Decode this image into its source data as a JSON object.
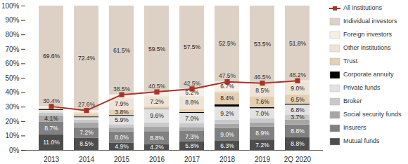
{
  "chart_data": {
    "type": "bar",
    "stacked": true,
    "data_labels": true,
    "grid": false,
    "legend": "right",
    "categories": [
      "2013",
      "2014",
      "2015",
      "2016",
      "2017",
      "2018",
      "2019",
      "2Q 2020"
    ],
    "ylim": [
      0,
      100
    ],
    "yticks": [
      {
        "value": 0,
        "label": "0%"
      },
      {
        "value": 10,
        "label": "10%"
      },
      {
        "value": 20,
        "label": "20%"
      },
      {
        "value": 30,
        "label": "30%"
      },
      {
        "value": 40,
        "label": "40%"
      },
      {
        "value": 50,
        "label": "50%"
      },
      {
        "value": 60,
        "label": "60%"
      },
      {
        "value": 70,
        "label": "70%"
      },
      {
        "value": 80,
        "label": "80%"
      },
      {
        "value": 90,
        "label": "90%"
      },
      {
        "value": 100,
        "label": "100%"
      }
    ],
    "series": [
      {
        "name": "Mutual funds",
        "color": "#4d4d4d",
        "values": [
          11.0,
          8.5,
          4.9,
          4.2,
          5.8,
          6.3,
          7.2,
          8.8
        ],
        "value_labels": [
          "11.0%",
          "8.5%",
          "4.9%",
          "4.2%",
          "5.8%",
          "6.3%",
          "7.2%",
          "8.8%"
        ]
      },
      {
        "name": "Insurers",
        "color": "#808080",
        "values": [
          8.7,
          7.2,
          8.0,
          8.8,
          7.3,
          9.0,
          8.9,
          8.8
        ],
        "value_labels": [
          "8.7%",
          "7.2%",
          "8.0%",
          "8.8%",
          "7.3%",
          "9.0%",
          "8.9%",
          "8.8%"
        ]
      },
      {
        "name": "Social security funds",
        "color": "#a6a6a6",
        "values": [
          4.1,
          3.2,
          2.7,
          3.0,
          2.8,
          2.8,
          2.9,
          3.3
        ],
        "value_labels": [
          "4.1%",
          null,
          null,
          null,
          null,
          null,
          null,
          null
        ]
      },
      {
        "name": "Broker",
        "color": "#c9c9c9",
        "values": [
          2.2,
          2.2,
          2.2,
          2.9,
          2.8,
          2.8,
          2.9,
          3.7
        ],
        "value_labels": [
          null,
          null,
          null,
          null,
          null,
          null,
          null,
          "3.7%"
        ]
      },
      {
        "name": "Private funds",
        "color": "#e2e2e2",
        "values": [
          1.7,
          1.6,
          5.9,
          9.6,
          7.0,
          9.2,
          7.0,
          6.8
        ],
        "value_labels": [
          null,
          null,
          "5.9%",
          "9.6%",
          "7.0%",
          "9.2%",
          "7.0%",
          "6.8%"
        ]
      },
      {
        "name": "Corporate annuity",
        "color": "#000000",
        "values": [
          0.5,
          0.5,
          0.5,
          0.3,
          0.5,
          1.5,
          0.7,
          0.6
        ],
        "value_labels": [
          null,
          null,
          null,
          null,
          null,
          null,
          null,
          null
        ]
      },
      {
        "name": "Trust",
        "color": "#e3cfb2",
        "values": [
          1.0,
          2.0,
          3.8,
          1.3,
          2.3,
          8.4,
          7.6,
          6.5
        ],
        "value_labels": [
          null,
          null,
          "3.8%",
          null,
          null,
          "8.4%",
          "7.6%",
          "6.5%"
        ]
      },
      {
        "name": "Other institutions",
        "color": "#eee4d6",
        "values": [
          0.5,
          1.0,
          7.9,
          7.2,
          8.8,
          0.8,
          8.5,
          9.0
        ],
        "value_labels": [
          null,
          null,
          "7.9%",
          "7.2%",
          "8.8%",
          null,
          "8.5%",
          "9.0%"
        ]
      },
      {
        "name": "Foreign investors",
        "color": "#f5efe8",
        "values": [
          0.7,
          1.4,
          2.6,
          3.2,
          5.2,
          6.7,
          0.8,
          0.7
        ],
        "value_labels": [
          null,
          null,
          null,
          null,
          "5.2%",
          "6.7%",
          null,
          null
        ]
      },
      {
        "name": "Individual investors",
        "color": "#ddd1c6",
        "values": [
          69.6,
          72.4,
          61.5,
          59.5,
          57.5,
          52.5,
          53.5,
          51.8
        ],
        "value_labels": [
          "69.6%",
          "72.4%",
          "61.5%",
          "59.5%",
          "57.5%",
          "52.5%",
          "53.5%",
          "51.8%"
        ]
      },
      {
        "name": "All institutions",
        "color": "#a93226",
        "type": "line",
        "marker": "square",
        "line_style": "solid",
        "values": [
          30.4,
          27.6,
          38.5,
          40.5,
          42.5,
          47.5,
          46.5,
          48.2
        ],
        "value_labels": [
          "30.4%",
          "27.6%",
          "38.5%",
          "40.5%",
          "42.5%",
          "47.5%",
          "46.5%",
          "48.2%"
        ]
      }
    ]
  }
}
